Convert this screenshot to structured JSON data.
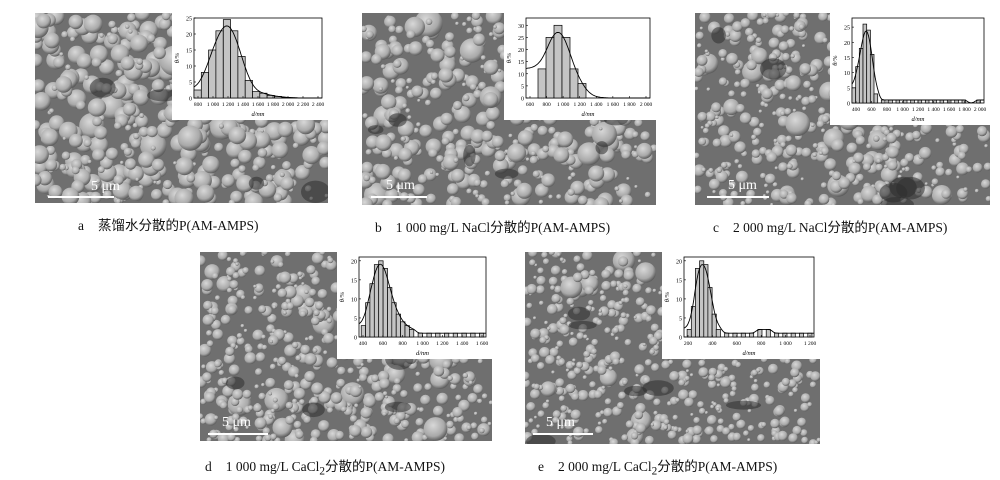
{
  "panels": [
    {
      "id": "a",
      "scale_label": "5 μm",
      "caption_letter": "a",
      "caption_text": "蒸馏水分散的P(AM-AMPS)",
      "chart_data": {
        "type": "bar",
        "ylabel": "θ/%",
        "xlabel": "d/nm",
        "ylim": [
          0,
          25
        ],
        "y_ticks": [
          0,
          5,
          10,
          15,
          20,
          25
        ],
        "x_tick_labels": [
          "800",
          "1 000",
          "1 200",
          "1 400",
          "1 600",
          "1 800",
          "2 000",
          "2 200",
          "2 400"
        ],
        "xlim": [
          700,
          2450
        ],
        "bar_width": 100,
        "x": [
          750,
          850,
          950,
          1050,
          1150,
          1250,
          1350,
          1450,
          1550,
          1650,
          1750,
          1850,
          1950,
          2050,
          2150,
          2250
        ],
        "values": [
          2.5,
          8,
          15,
          21,
          24.5,
          21,
          13,
          5.5,
          2,
          1.5,
          0.8,
          0.5,
          0.2,
          0.1,
          0,
          0
        ],
        "fit_curve": true
      }
    },
    {
      "id": "b",
      "scale_label": "5 μm",
      "caption_letter": "b",
      "caption_text": "1 000 mg/L NaCl分散的P(AM-AMPS)",
      "chart_data": {
        "type": "bar",
        "ylabel": "θ/%",
        "xlabel": "d/nm",
        "ylim": [
          0,
          33
        ],
        "y_ticks": [
          0,
          5,
          10,
          15,
          20,
          25,
          30
        ],
        "x_tick_labels": [
          "600",
          "800",
          "1 000",
          "1 200",
          "1 400",
          "1 600",
          "1 800",
          "2 000"
        ],
        "xlim": [
          550,
          2100
        ],
        "bar_width": 100,
        "x": [
          750,
          850,
          950,
          1050,
          1150,
          1250,
          1350
        ],
        "values": [
          12,
          25,
          30,
          25,
          12,
          6,
          0
        ],
        "fit_curve": true
      }
    },
    {
      "id": "c",
      "scale_label": "5 μm",
      "caption_letter": "c",
      "caption_text": "2 000 mg/L NaCl分散的P(AM-AMPS)",
      "chart_data": {
        "type": "bar",
        "ylabel": "θ/%",
        "xlabel": "d/nm",
        "ylim": [
          0,
          28
        ],
        "y_ticks": [
          0,
          5,
          10,
          15,
          20,
          25
        ],
        "x_tick_labels": [
          "400",
          "600",
          "800",
          "1 000",
          "1 200",
          "1 400",
          "1 600",
          "1 800",
          "2 000"
        ],
        "xlim": [
          300,
          2100
        ],
        "bar_width": 50,
        "x": [
          325,
          375,
          425,
          475,
          525,
          575,
          625,
          725,
          825,
          925,
          1025,
          1125,
          1225,
          1325,
          1425,
          1525,
          1625,
          1725,
          1825,
          1925,
          2025
        ],
        "values": [
          5,
          12,
          18,
          26,
          24,
          16,
          3,
          1,
          1,
          1,
          1,
          1,
          1,
          1,
          1,
          1,
          1,
          1,
          1,
          0,
          1
        ],
        "fit_curve": true
      }
    },
    {
      "id": "d",
      "scale_label": "5 μm",
      "caption_letter": "d",
      "caption_prefix": "1 000 mg/L CaCl",
      "caption_sub": "2",
      "caption_suffix": "分散的P(AM-AMPS)",
      "chart_data": {
        "type": "bar",
        "ylabel": "θ/%",
        "xlabel": "d/nm",
        "ylim": [
          0,
          21
        ],
        "y_ticks": [
          0,
          5,
          10,
          15,
          20
        ],
        "x_tick_labels": [
          "400",
          "600",
          "800",
          "1 000",
          "1 200",
          "1 400",
          "1 600"
        ],
        "xlim": [
          250,
          1700
        ],
        "bar_width": 50,
        "x": [
          300,
          350,
          400,
          450,
          500,
          550,
          600,
          650,
          700,
          750,
          800,
          850,
          950,
          1050,
          1150,
          1250,
          1350,
          1450,
          1550,
          1650
        ],
        "values": [
          3,
          9,
          14,
          19,
          20,
          18,
          13,
          9,
          6,
          4,
          3,
          2,
          1,
          1,
          1,
          1,
          1,
          1,
          1,
          1
        ],
        "fit_curve": true
      }
    },
    {
      "id": "e",
      "scale_label": "5 μm",
      "caption_letter": "e",
      "caption_prefix": "2 000 mg/L CaCl",
      "caption_sub": "2",
      "caption_suffix": "分散的P(AM-AMPS)",
      "chart_data": {
        "type": "bar",
        "ylabel": "θ/%",
        "xlabel": "d/nm",
        "ylim": [
          0,
          21
        ],
        "y_ticks": [
          0,
          5,
          10,
          15,
          20
        ],
        "x_tick_labels": [
          "200",
          "400",
          "600",
          "800",
          "1 000",
          "1 200"
        ],
        "xlim": [
          50,
          1300
        ],
        "bar_width": 40,
        "x": [
          100,
          140,
          180,
          220,
          260,
          300,
          340,
          380,
          460,
          540,
          620,
          700,
          780,
          860,
          940,
          1020,
          1100,
          1180,
          1260
        ],
        "values": [
          2,
          8,
          18,
          20,
          19,
          13,
          6,
          2,
          1,
          1,
          1,
          1,
          2,
          2,
          1,
          1,
          1,
          1,
          1
        ],
        "fit_curve": true
      }
    }
  ]
}
